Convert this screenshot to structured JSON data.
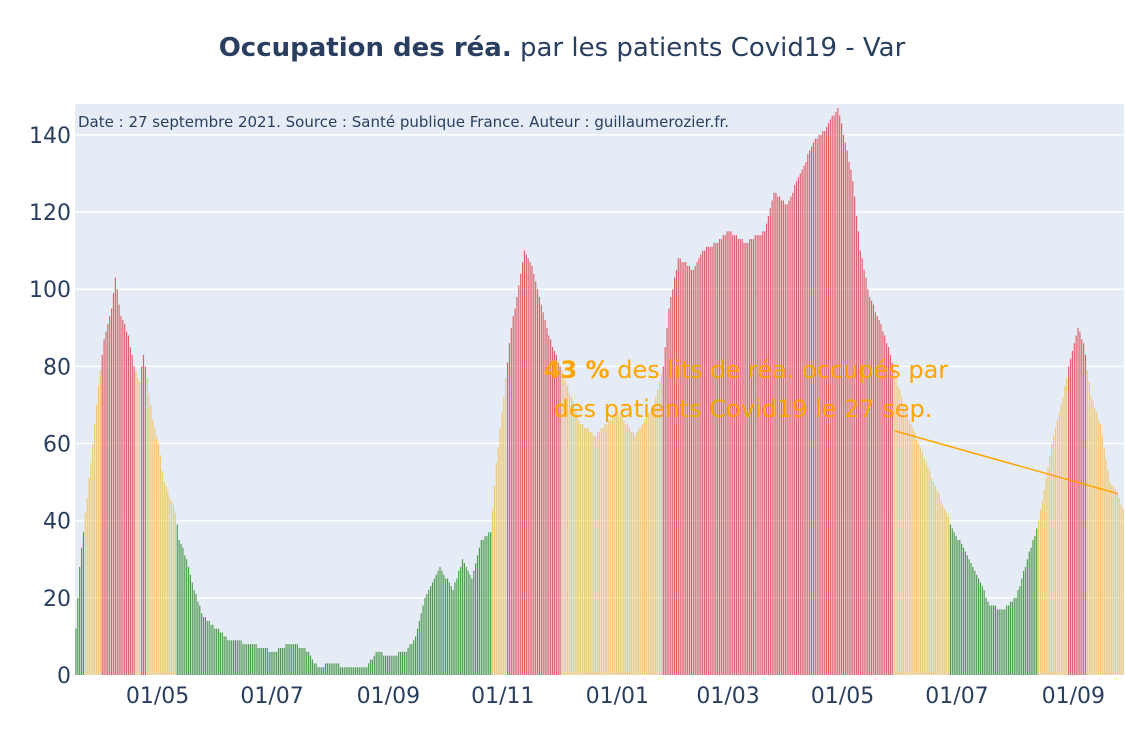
{
  "chart_data": {
    "type": "bar",
    "title_bold": "Occupation des réa.",
    "title_rest": " par les patients Covid19 - Var",
    "source_note": "Date : 27 septembre 2021. Source : Santé publique France. Auteur : guillaumerozier.fr.",
    "annotation": {
      "value_text": "43 %",
      "line1_rest": " des lits de réa. occupés par",
      "line2": "des patients Covid19 le 27 sep.",
      "color": "#ffa500"
    },
    "ylim": [
      0,
      148
    ],
    "yticks": [
      0,
      20,
      40,
      60,
      80,
      100,
      120,
      140
    ],
    "x_start": "2020-03-18",
    "x_end": "2021-09-27",
    "xticks": [
      {
        "date": "2020-05-01",
        "label": "01/05"
      },
      {
        "date": "2020-07-01",
        "label": "01/07"
      },
      {
        "date": "2020-09-01",
        "label": "01/09"
      },
      {
        "date": "2020-11-01",
        "label": "01/11"
      },
      {
        "date": "2021-01-01",
        "label": "01/01"
      },
      {
        "date": "2021-03-01",
        "label": "01/03"
      },
      {
        "date": "2021-05-01",
        "label": "01/05"
      },
      {
        "date": "2021-07-01",
        "label": "01/07"
      },
      {
        "date": "2021-09-01",
        "label": "01/09"
      }
    ],
    "thresholds": {
      "low": 40,
      "high": 80
    },
    "colors": {
      "green": "#4e9a4e",
      "yellow": "#f0c870",
      "red": "#e0606a",
      "plot_bg": "#e5ecf6",
      "grid": "#ffffff"
    },
    "series": [
      {
        "keypoints": [
          [
            "2020-03-18",
            12
          ],
          [
            "2020-03-20",
            28
          ],
          [
            "2020-03-22",
            37
          ],
          [
            "2020-03-26",
            55
          ],
          [
            "2020-03-30",
            75
          ],
          [
            "2020-04-02",
            87
          ],
          [
            "2020-04-06",
            95
          ],
          [
            "2020-04-08",
            103
          ],
          [
            "2020-04-11",
            93
          ],
          [
            "2020-04-15",
            88
          ],
          [
            "2020-04-18",
            80
          ],
          [
            "2020-04-21",
            76
          ],
          [
            "2020-04-23",
            83
          ],
          [
            "2020-04-25",
            77
          ],
          [
            "2020-04-28",
            66
          ],
          [
            "2020-05-01",
            60
          ],
          [
            "2020-05-04",
            50
          ],
          [
            "2020-05-08",
            45
          ],
          [
            "2020-05-10",
            42
          ],
          [
            "2020-05-12",
            35
          ],
          [
            "2020-05-16",
            30
          ],
          [
            "2020-05-20",
            22
          ],
          [
            "2020-05-25",
            15
          ],
          [
            "2020-06-01",
            12
          ],
          [
            "2020-06-08",
            9
          ],
          [
            "2020-06-20",
            8
          ],
          [
            "2020-07-01",
            6
          ],
          [
            "2020-07-10",
            8
          ],
          [
            "2020-07-18",
            7
          ],
          [
            "2020-07-25",
            2
          ],
          [
            "2020-08-01",
            3
          ],
          [
            "2020-08-10",
            2
          ],
          [
            "2020-08-20",
            2
          ],
          [
            "2020-08-25",
            6
          ],
          [
            "2020-09-01",
            5
          ],
          [
            "2020-09-10",
            6
          ],
          [
            "2020-09-15",
            10
          ],
          [
            "2020-09-20",
            20
          ],
          [
            "2020-09-28",
            28
          ],
          [
            "2020-10-05",
            22
          ],
          [
            "2020-10-10",
            30
          ],
          [
            "2020-10-15",
            25
          ],
          [
            "2020-10-20",
            35
          ],
          [
            "2020-10-25",
            37
          ],
          [
            "2020-10-28",
            55
          ],
          [
            "2020-11-01",
            72
          ],
          [
            "2020-11-05",
            90
          ],
          [
            "2020-11-08",
            98
          ],
          [
            "2020-11-12",
            110
          ],
          [
            "2020-11-16",
            106
          ],
          [
            "2020-11-20",
            98
          ],
          [
            "2020-11-25",
            88
          ],
          [
            "2020-12-01",
            80
          ],
          [
            "2020-12-07",
            72
          ],
          [
            "2020-12-12",
            65
          ],
          [
            "2020-12-20",
            62
          ],
          [
            "2021-01-01",
            68
          ],
          [
            "2021-01-10",
            62
          ],
          [
            "2021-01-20",
            70
          ],
          [
            "2021-01-25",
            80
          ],
          [
            "2021-01-28",
            95
          ],
          [
            "2021-02-02",
            108
          ],
          [
            "2021-02-10",
            105
          ],
          [
            "2021-02-15",
            110
          ],
          [
            "2021-02-22",
            112
          ],
          [
            "2021-03-01",
            115
          ],
          [
            "2021-03-10",
            112
          ],
          [
            "2021-03-20",
            115
          ],
          [
            "2021-03-25",
            125
          ],
          [
            "2021-04-01",
            122
          ],
          [
            "2021-04-08",
            130
          ],
          [
            "2021-04-15",
            138
          ],
          [
            "2021-04-22",
            142
          ],
          [
            "2021-04-28",
            147
          ],
          [
            "2021-05-02",
            138
          ],
          [
            "2021-05-06",
            128
          ],
          [
            "2021-05-10",
            110
          ],
          [
            "2021-05-15",
            98
          ],
          [
            "2021-05-20",
            92
          ],
          [
            "2021-05-25",
            85
          ],
          [
            "2021-05-28",
            79
          ],
          [
            "2021-06-02",
            70
          ],
          [
            "2021-06-10",
            60
          ],
          [
            "2021-06-18",
            50
          ],
          [
            "2021-06-25",
            42
          ],
          [
            "2021-06-28",
            38
          ],
          [
            "2021-07-05",
            32
          ],
          [
            "2021-07-12",
            25
          ],
          [
            "2021-07-18",
            18
          ],
          [
            "2021-07-25",
            17
          ],
          [
            "2021-08-01",
            20
          ],
          [
            "2021-08-07",
            30
          ],
          [
            "2021-08-12",
            38
          ],
          [
            "2021-08-15",
            45
          ],
          [
            "2021-08-20",
            60
          ],
          [
            "2021-08-25",
            70
          ],
          [
            "2021-08-30",
            82
          ],
          [
            "2021-09-03",
            90
          ],
          [
            "2021-09-06",
            86
          ],
          [
            "2021-09-10",
            72
          ],
          [
            "2021-09-15",
            65
          ],
          [
            "2021-09-20",
            50
          ],
          [
            "2021-09-24",
            47
          ],
          [
            "2021-09-27",
            43
          ]
        ]
      }
    ]
  }
}
